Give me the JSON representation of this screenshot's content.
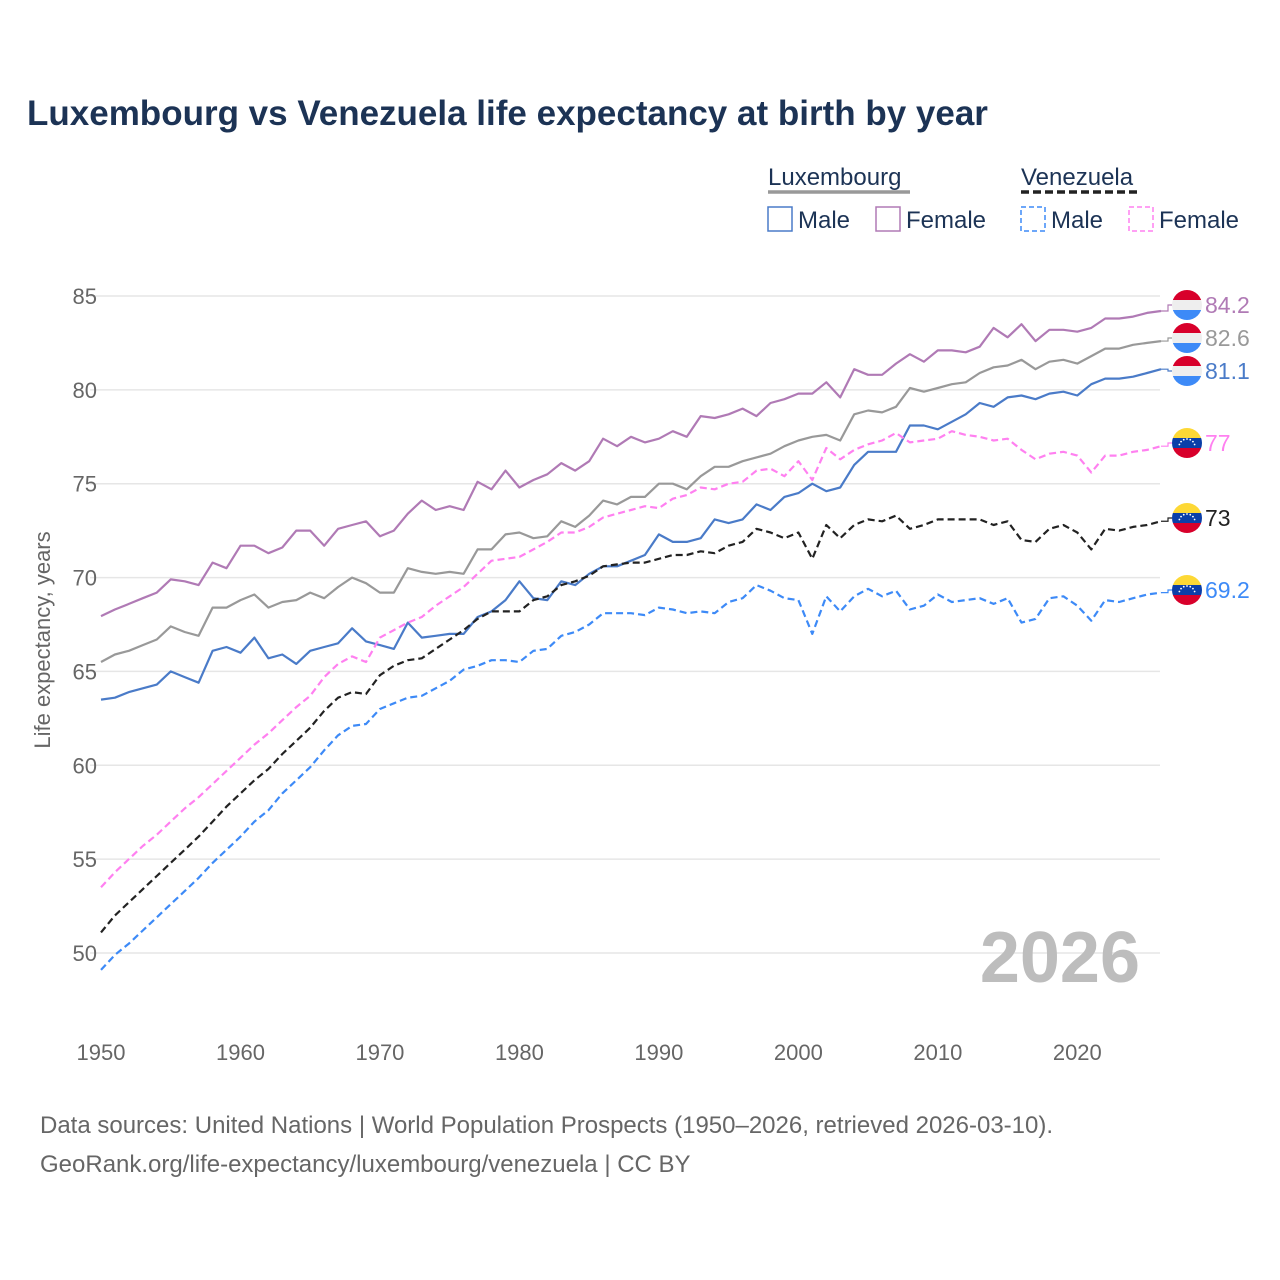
{
  "chart_data": {
    "type": "line",
    "title": "Luxembourg vs Venezuela life expectancy at birth by year",
    "xlabel": "",
    "ylabel": "Life expectancy, years",
    "xlim": [
      1950,
      2026
    ],
    "ylim": [
      50,
      85
    ],
    "x_ticks": [
      "1950",
      "1960",
      "1970",
      "1980",
      "1990",
      "2000",
      "2010",
      "2020"
    ],
    "y_ticks": [
      "50",
      "55",
      "60",
      "65",
      "70",
      "75",
      "80",
      "85"
    ],
    "grid": true,
    "legend_placement": "top-right",
    "legend_groups": [
      {
        "name": "Luxembourg"
      },
      {
        "name": "Venezuela"
      }
    ],
    "watermark_year": "2026",
    "x_start": 1950,
    "series": [
      {
        "name": "Luxembourg Female",
        "group": "Luxembourg",
        "legend": "Female",
        "color": "#b07ab5",
        "dashed": false,
        "end_label": "84.2",
        "flag": "luxembourg",
        "values": [
          67.95,
          68.3,
          68.6,
          68.9,
          69.2,
          69.9,
          69.8,
          69.6,
          70.8,
          70.5,
          71.7,
          71.7,
          71.3,
          71.6,
          72.5,
          72.5,
          71.7,
          72.6,
          72.8,
          73.0,
          72.2,
          72.5,
          73.4,
          74.1,
          73.6,
          73.8,
          73.6,
          75.1,
          74.7,
          75.7,
          74.8,
          75.2,
          75.5,
          76.1,
          75.7,
          76.2,
          77.4,
          77.0,
          77.5,
          77.2,
          77.4,
          77.8,
          77.5,
          78.6,
          78.5,
          78.7,
          79.0,
          78.6,
          79.3,
          79.5,
          79.8,
          79.8,
          80.4,
          79.6,
          81.1,
          80.8,
          80.8,
          81.4,
          81.9,
          81.5,
          82.1,
          82.1,
          82.0,
          82.3,
          83.3,
          82.8,
          83.5,
          82.6,
          83.2,
          83.2,
          83.1,
          83.3,
          83.8,
          83.8,
          83.9,
          84.1,
          84.2
        ]
      },
      {
        "name": "Luxembourg Total",
        "group": "Luxembourg",
        "legend": "",
        "color": "#999999",
        "dashed": false,
        "end_label": "82.6",
        "flag": "luxembourg",
        "values": [
          65.5,
          65.9,
          66.1,
          66.4,
          66.7,
          67.4,
          67.1,
          66.9,
          68.4,
          68.4,
          68.8,
          69.1,
          68.4,
          68.7,
          68.8,
          69.2,
          68.9,
          69.5,
          70.0,
          69.7,
          69.2,
          69.2,
          70.5,
          70.3,
          70.2,
          70.3,
          70.2,
          71.5,
          71.5,
          72.3,
          72.4,
          72.1,
          72.2,
          73.0,
          72.7,
          73.3,
          74.1,
          73.9,
          74.3,
          74.3,
          75.0,
          75.0,
          74.7,
          75.4,
          75.9,
          75.9,
          76.2,
          76.4,
          76.6,
          77.0,
          77.3,
          77.5,
          77.6,
          77.3,
          78.7,
          78.9,
          78.8,
          79.1,
          80.1,
          79.9,
          80.1,
          80.3,
          80.4,
          80.9,
          81.2,
          81.3,
          81.6,
          81.1,
          81.5,
          81.6,
          81.4,
          81.8,
          82.2,
          82.2,
          82.4,
          82.5,
          82.6
        ]
      },
      {
        "name": "Luxembourg Male",
        "group": "Luxembourg",
        "legend": "Male",
        "color": "#4a7bc8",
        "dashed": false,
        "end_label": "81.1",
        "flag": "luxembourg",
        "values": [
          63.5,
          63.6,
          63.9,
          64.1,
          64.3,
          65.0,
          64.7,
          64.4,
          66.1,
          66.3,
          66.0,
          66.8,
          65.7,
          65.9,
          65.4,
          66.1,
          66.3,
          66.5,
          67.3,
          66.6,
          66.4,
          66.2,
          67.6,
          66.8,
          66.9,
          67.0,
          67.0,
          67.9,
          68.2,
          68.8,
          69.8,
          68.9,
          68.8,
          69.8,
          69.6,
          70.2,
          70.6,
          70.6,
          70.9,
          71.2,
          72.3,
          71.9,
          71.9,
          72.1,
          73.1,
          72.9,
          73.1,
          73.9,
          73.6,
          74.3,
          74.5,
          75.0,
          74.6,
          74.8,
          76.0,
          76.7,
          76.7,
          76.7,
          78.1,
          78.1,
          77.9,
          78.3,
          78.7,
          79.3,
          79.1,
          79.6,
          79.7,
          79.5,
          79.8,
          79.9,
          79.7,
          80.3,
          80.6,
          80.6,
          80.7,
          80.9,
          81.1
        ]
      },
      {
        "name": "Venezuela Female",
        "group": "Venezuela",
        "legend": "Female",
        "color": "#ff80f0",
        "dashed": true,
        "end_label": "77",
        "flag": "venezuela",
        "values": [
          53.5,
          54.3,
          55.0,
          55.7,
          56.3,
          57.0,
          57.7,
          58.3,
          59.0,
          59.7,
          60.4,
          61.1,
          61.7,
          62.4,
          63.1,
          63.7,
          64.7,
          65.4,
          65.8,
          65.5,
          66.8,
          67.2,
          67.6,
          67.9,
          68.5,
          69.0,
          69.5,
          70.2,
          70.9,
          71.0,
          71.1,
          71.5,
          71.9,
          72.4,
          72.4,
          72.7,
          73.2,
          73.4,
          73.6,
          73.8,
          73.7,
          74.2,
          74.4,
          74.8,
          74.7,
          75.0,
          75.1,
          75.7,
          75.8,
          75.4,
          76.2,
          75.2,
          76.9,
          76.3,
          76.8,
          77.1,
          77.3,
          77.7,
          77.2,
          77.3,
          77.4,
          77.8,
          77.6,
          77.5,
          77.3,
          77.4,
          76.8,
          76.3,
          76.6,
          76.7,
          76.5,
          75.6,
          76.5,
          76.5,
          76.7,
          76.8,
          77.0
        ]
      },
      {
        "name": "Venezuela Total",
        "group": "Venezuela",
        "legend": "",
        "color": "#222222",
        "dashed": true,
        "end_label": "73",
        "flag": "venezuela",
        "values": [
          51.1,
          52.0,
          52.7,
          53.4,
          54.1,
          54.8,
          55.5,
          56.2,
          57.0,
          57.8,
          58.5,
          59.2,
          59.8,
          60.6,
          61.3,
          62.0,
          62.9,
          63.6,
          63.9,
          63.8,
          64.8,
          65.3,
          65.6,
          65.7,
          66.2,
          66.7,
          67.2,
          67.8,
          68.2,
          68.2,
          68.2,
          68.8,
          69.0,
          69.6,
          69.8,
          70.1,
          70.6,
          70.7,
          70.8,
          70.8,
          71.0,
          71.2,
          71.2,
          71.4,
          71.3,
          71.7,
          71.9,
          72.6,
          72.4,
          72.1,
          72.4,
          71.0,
          72.8,
          72.1,
          72.8,
          73.1,
          73.0,
          73.3,
          72.6,
          72.8,
          73.1,
          73.1,
          73.1,
          73.1,
          72.8,
          73.0,
          72.0,
          71.9,
          72.6,
          72.8,
          72.4,
          71.5,
          72.6,
          72.5,
          72.7,
          72.8,
          73.0
        ]
      },
      {
        "name": "Venezuela Male",
        "group": "Venezuela",
        "legend": "Male",
        "color": "#3d8af7",
        "dashed": true,
        "end_label": "69.2",
        "flag": "venezuela",
        "values": [
          49.1,
          49.9,
          50.5,
          51.2,
          51.9,
          52.6,
          53.3,
          54.0,
          54.8,
          55.5,
          56.2,
          57.0,
          57.6,
          58.5,
          59.2,
          59.9,
          60.8,
          61.6,
          62.1,
          62.2,
          63.0,
          63.3,
          63.6,
          63.7,
          64.1,
          64.5,
          65.1,
          65.3,
          65.6,
          65.6,
          65.5,
          66.1,
          66.2,
          66.9,
          67.1,
          67.5,
          68.1,
          68.1,
          68.1,
          68.0,
          68.4,
          68.3,
          68.1,
          68.2,
          68.1,
          68.7,
          68.9,
          69.6,
          69.3,
          68.9,
          68.8,
          67.0,
          69.0,
          68.2,
          69.0,
          69.4,
          69.0,
          69.3,
          68.3,
          68.5,
          69.1,
          68.7,
          68.8,
          68.9,
          68.6,
          68.9,
          67.6,
          67.8,
          68.9,
          69.0,
          68.5,
          67.7,
          68.8,
          68.7,
          68.9,
          69.1,
          69.2
        ]
      }
    ]
  },
  "footer": {
    "line1": "Data sources: United Nations | World Population Prospects (1950–2026, retrieved 2026-03-10).",
    "line2": "GeoRank.org/life-expectancy/luxembourg/venezuela | CC BY"
  }
}
